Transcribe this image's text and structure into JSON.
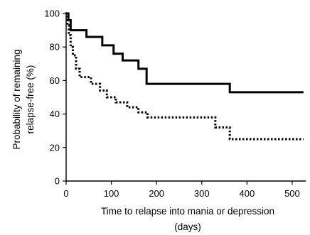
{
  "chart_data": {
    "type": "line",
    "title": "",
    "xlabel": [
      "Time to relapse into mania or depression",
      "(days)"
    ],
    "ylabel": [
      "Probability of remaining",
      "relapse-free (%)"
    ],
    "xlim": [
      0,
      530
    ],
    "ylim": [
      0,
      100
    ],
    "xticks": [
      0,
      100,
      200,
      300,
      400,
      500
    ],
    "yticks": [
      0,
      20,
      40,
      60,
      80,
      100
    ],
    "grid": false,
    "step": true,
    "series": [
      {
        "style": "solid",
        "color": "#000000",
        "points": [
          [
            0,
            100
          ],
          [
            5,
            96
          ],
          [
            10,
            90
          ],
          [
            40,
            90
          ],
          [
            45,
            86
          ],
          [
            75,
            86
          ],
          [
            80,
            81
          ],
          [
            100,
            81
          ],
          [
            105,
            76
          ],
          [
            115,
            76
          ],
          [
            125,
            72
          ],
          [
            155,
            72
          ],
          [
            160,
            67
          ],
          [
            170,
            67
          ],
          [
            178,
            58
          ],
          [
            360,
            58
          ],
          [
            362,
            53
          ],
          [
            525,
            53
          ]
        ]
      },
      {
        "style": "dotted",
        "color": "#000000",
        "points": [
          [
            0,
            100
          ],
          [
            3,
            93
          ],
          [
            6,
            87
          ],
          [
            10,
            80
          ],
          [
            15,
            75
          ],
          [
            22,
            67
          ],
          [
            30,
            62
          ],
          [
            50,
            62
          ],
          [
            55,
            58
          ],
          [
            70,
            58
          ],
          [
            75,
            54
          ],
          [
            85,
            54
          ],
          [
            90,
            50
          ],
          [
            105,
            50
          ],
          [
            110,
            47
          ],
          [
            130,
            47
          ],
          [
            135,
            44
          ],
          [
            155,
            44
          ],
          [
            160,
            41
          ],
          [
            175,
            41
          ],
          [
            180,
            38
          ],
          [
            325,
            38
          ],
          [
            330,
            32
          ],
          [
            355,
            32
          ],
          [
            362,
            25
          ],
          [
            525,
            25
          ]
        ]
      }
    ]
  }
}
